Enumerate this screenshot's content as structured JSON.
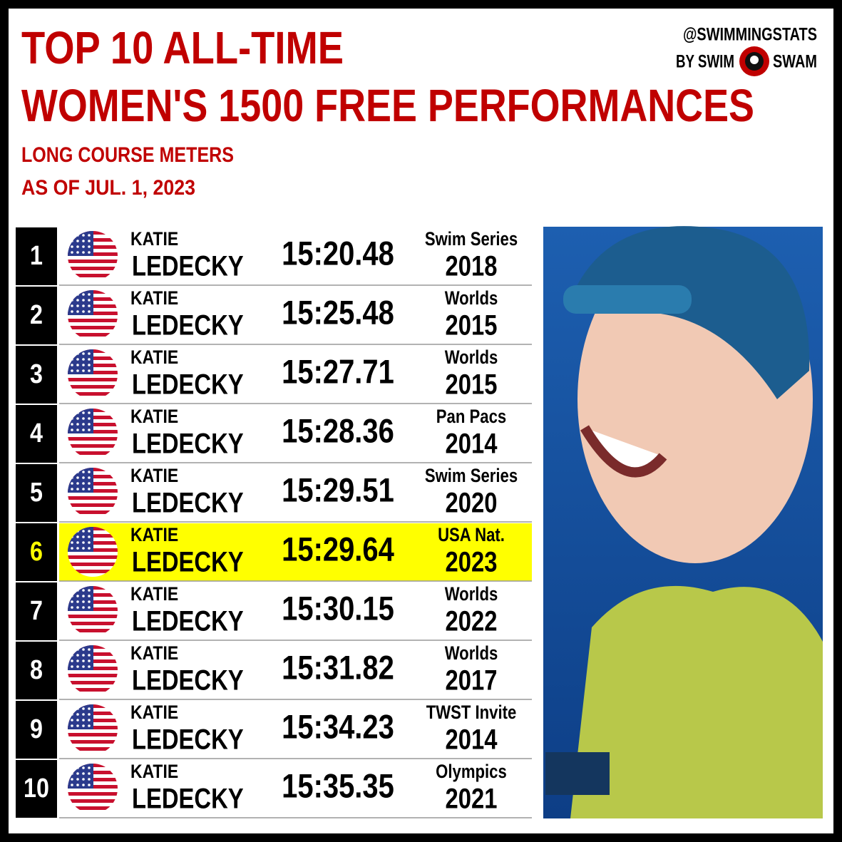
{
  "header": {
    "title_line1": "TOP 10 ALL-TIME",
    "title_line2": "WOMEN'S 1500 FREE PERFORMANCES",
    "subtitle_line1": "LONG COURSE METERS",
    "subtitle_line2": "AS OF JUL. 1, 2023",
    "credit_line1": "@SWIMMINGSTATS",
    "credit_line2_left": "BY SWIM",
    "credit_line2_right": "SWAM"
  },
  "table": {
    "rows": [
      {
        "rank": "1",
        "first": "KATIE",
        "last": "LEDECKY",
        "time": "15:20.48",
        "meet": "Swim Series",
        "year": "2018",
        "highlight": false
      },
      {
        "rank": "2",
        "first": "KATIE",
        "last": "LEDECKY",
        "time": "15:25.48",
        "meet": "Worlds",
        "year": "2015",
        "highlight": false
      },
      {
        "rank": "3",
        "first": "KATIE",
        "last": "LEDECKY",
        "time": "15:27.71",
        "meet": "Worlds",
        "year": "2015",
        "highlight": false
      },
      {
        "rank": "4",
        "first": "KATIE",
        "last": "LEDECKY",
        "time": "15:28.36",
        "meet": "Pan Pacs",
        "year": "2014",
        "highlight": false
      },
      {
        "rank": "5",
        "first": "KATIE",
        "last": "LEDECKY",
        "time": "15:29.51",
        "meet": "Swim Series",
        "year": "2020",
        "highlight": false
      },
      {
        "rank": "6",
        "first": "KATIE",
        "last": "LEDECKY",
        "time": "15:29.64",
        "meet": "USA Nat.",
        "year": "2023",
        "highlight": true
      },
      {
        "rank": "7",
        "first": "KATIE",
        "last": "LEDECKY",
        "time": "15:30.15",
        "meet": "Worlds",
        "year": "2022",
        "highlight": false
      },
      {
        "rank": "8",
        "first": "KATIE",
        "last": "LEDECKY",
        "time": "15:31.82",
        "meet": "Worlds",
        "year": "2017",
        "highlight": false
      },
      {
        "rank": "9",
        "first": "KATIE",
        "last": "LEDECKY",
        "time": "15:34.23",
        "meet": "TWST Invite",
        "year": "2014",
        "highlight": false
      },
      {
        "rank": "10",
        "first": "KATIE",
        "last": "LEDECKY",
        "time": "15:35.35",
        "meet": "Olympics",
        "year": "2021",
        "highlight": false
      }
    ]
  }
}
